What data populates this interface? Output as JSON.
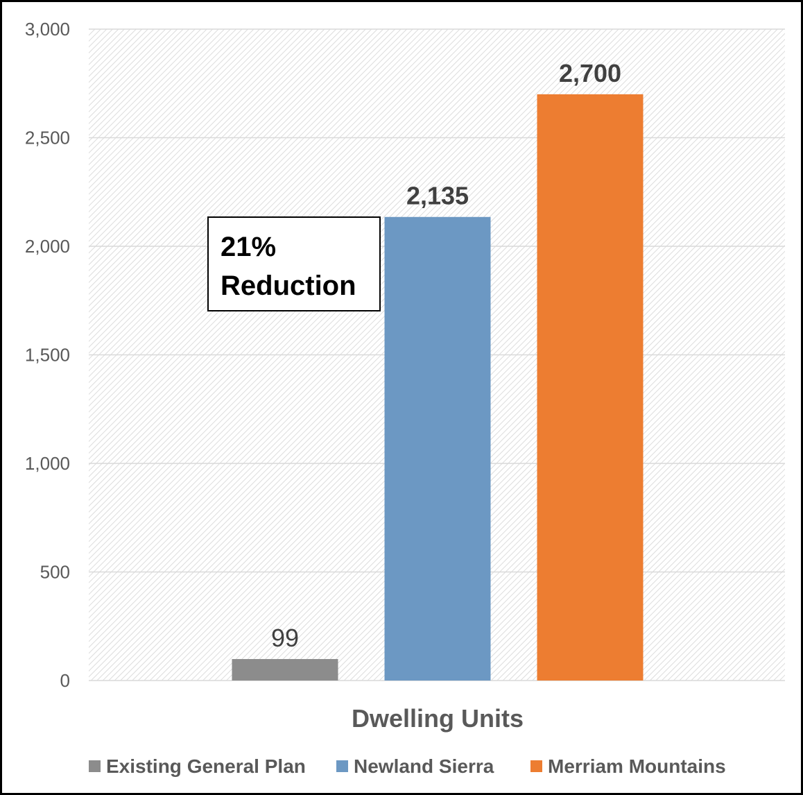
{
  "chart_data": {
    "type": "bar",
    "title": "",
    "xlabel": "Dwelling Units",
    "ylabel": "",
    "ylim": [
      0,
      3000
    ],
    "yticks": [
      0,
      500,
      1000,
      1500,
      2000,
      2500,
      3000
    ],
    "ytick_labels": [
      "0",
      "500",
      "1,000",
      "1,500",
      "2,000",
      "2,500",
      "3,000"
    ],
    "grid": true,
    "legend_position": "bottom",
    "series": [
      {
        "name": "Existing General Plan",
        "value": 99,
        "label": "99",
        "color": "#8c8c8c",
        "label_bold": false
      },
      {
        "name": "Newland Sierra",
        "value": 2135,
        "label": "2,135",
        "color": "#6c98c3",
        "label_bold": true
      },
      {
        "name": "Merriam Mountains",
        "value": 2700,
        "label": "2,700",
        "color": "#ed7d31",
        "label_bold": true
      }
    ],
    "annotation": {
      "line1": "21%",
      "line2": "Reduction"
    }
  }
}
